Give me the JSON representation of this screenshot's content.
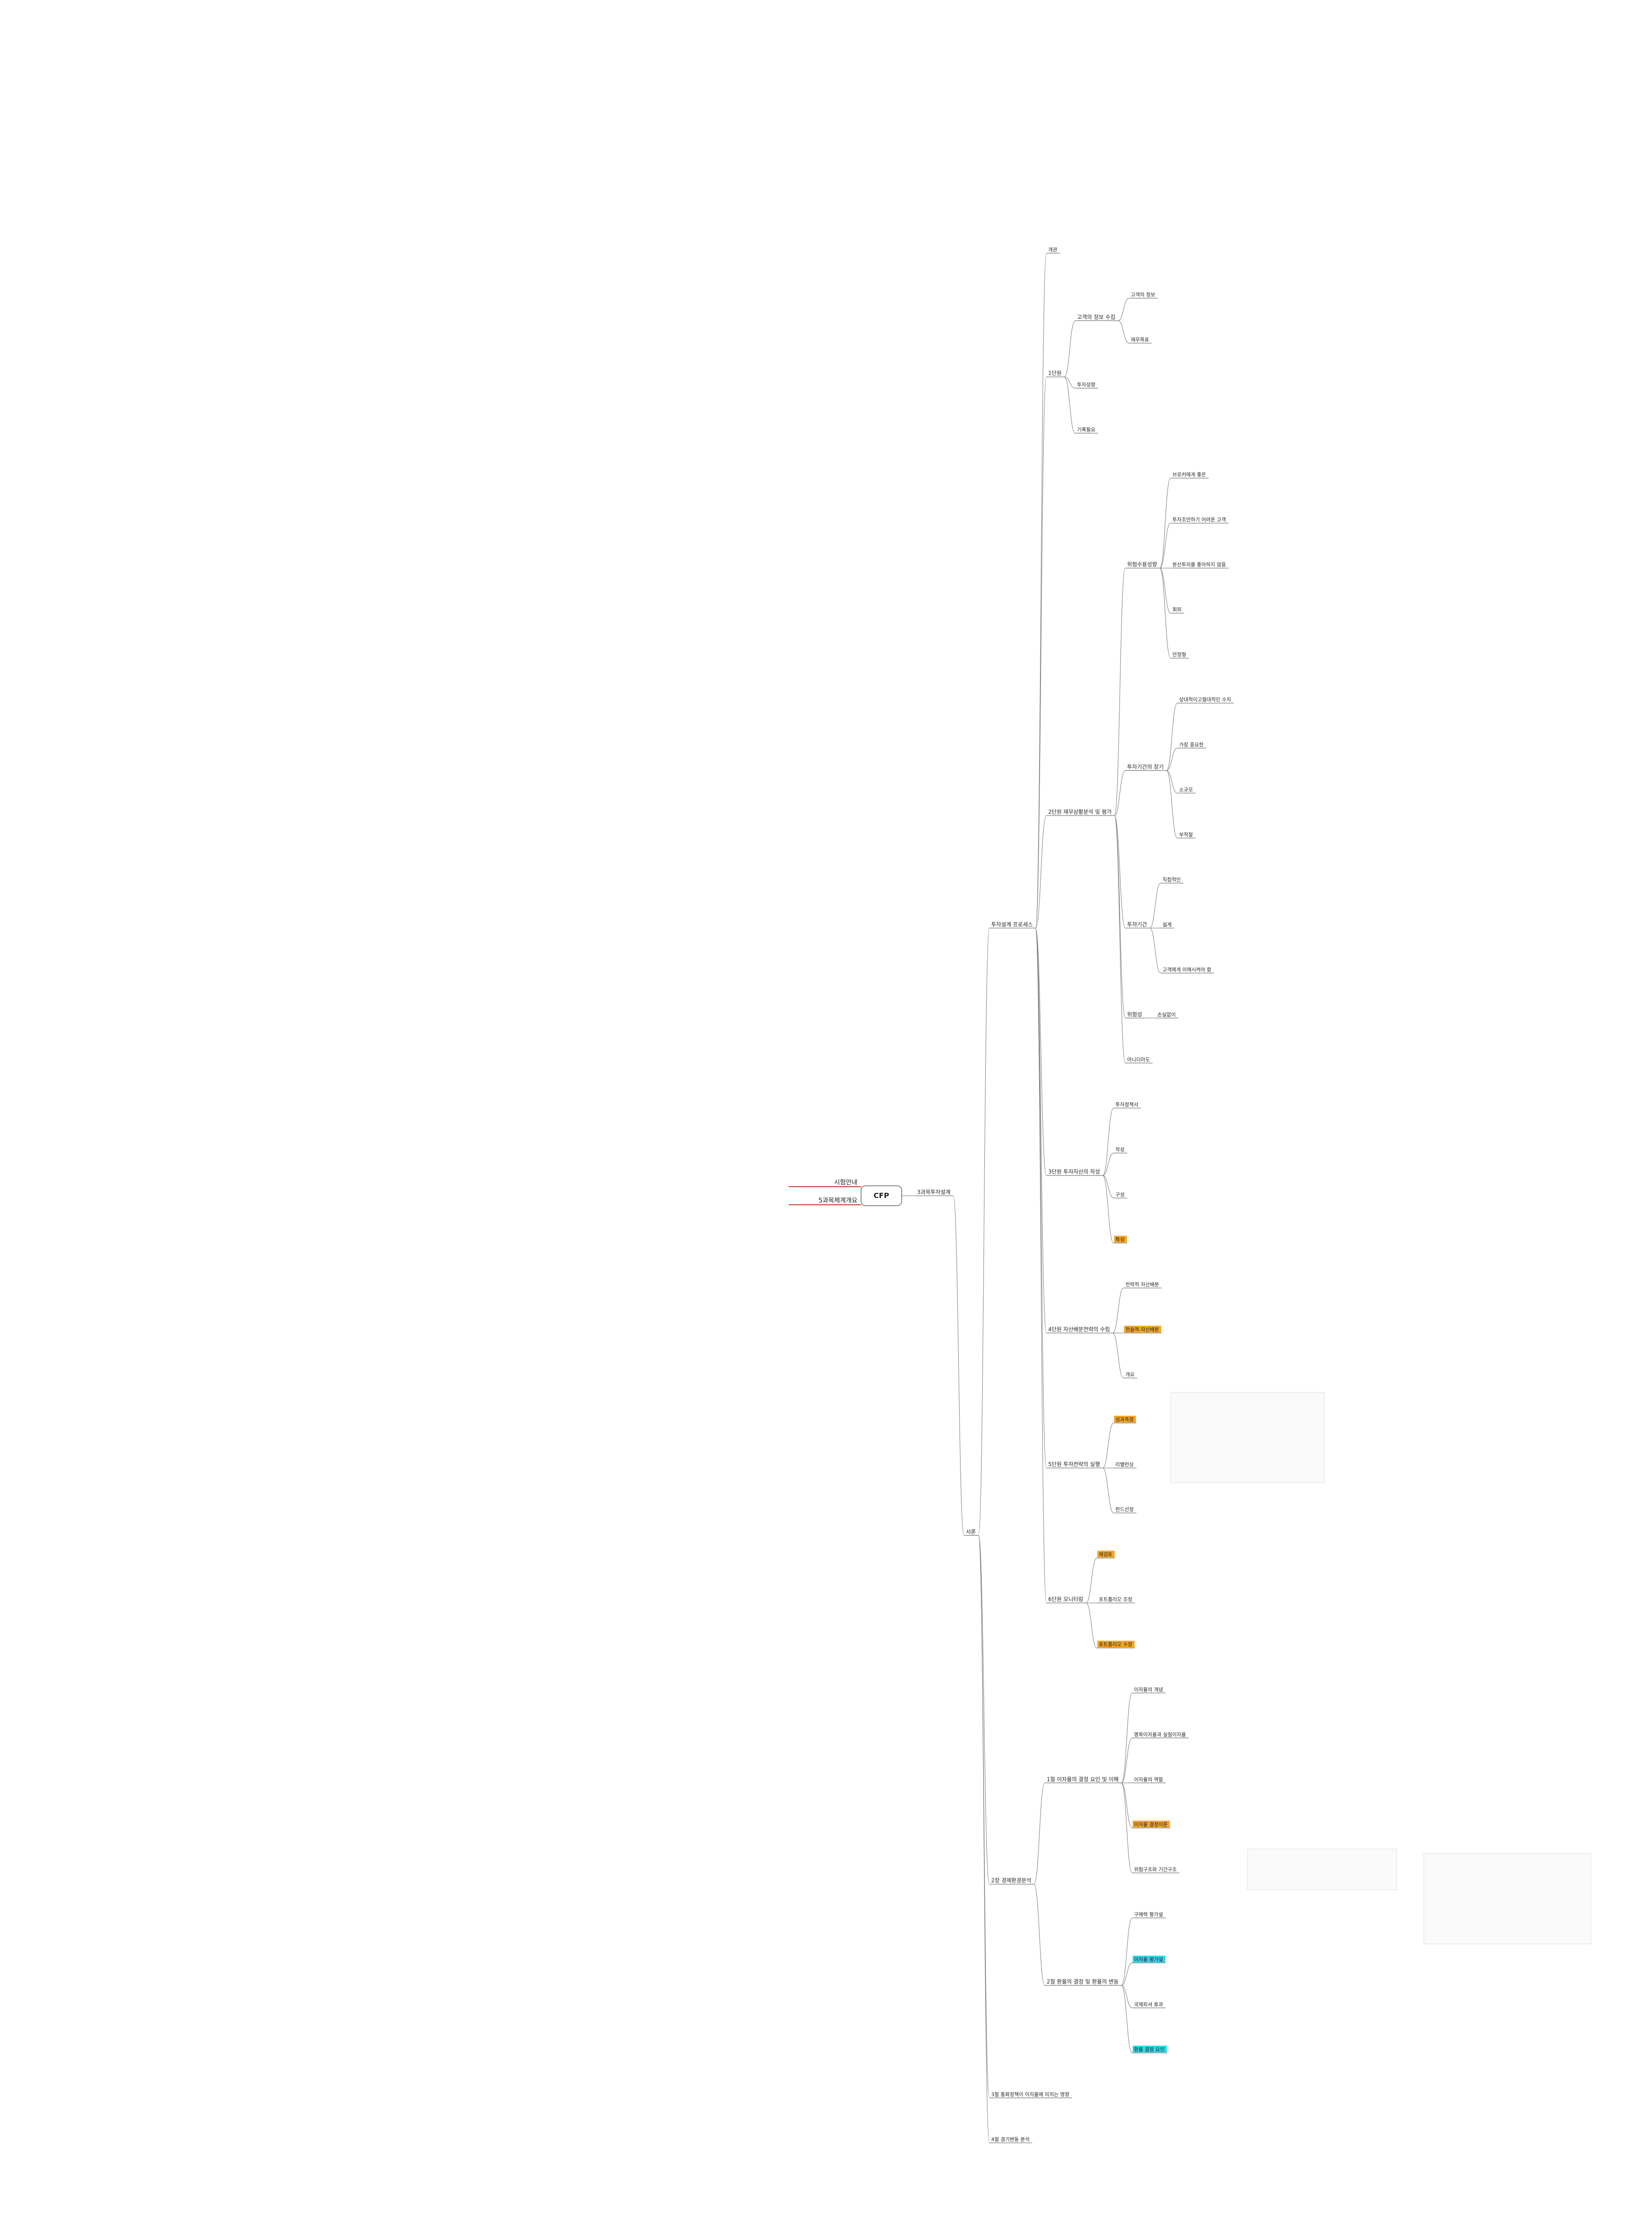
{
  "mindmap": {
    "root": "CFP",
    "left": [
      "시험안내",
      "5과목체계개요"
    ],
    "right": {
      "label": "3과목투자설계",
      "children": [
        {
          "label": "서론",
          "children": [
            {
              "label": "투자설계 프로세스",
              "children": [
                {
                  "label": "개관"
                },
                {
                  "label": "1단원",
                  "children": [
                    {
                      "label": "고객의 정보 수집",
                      "children": [
                        {
                          "label": "고객의 정보"
                        },
                        {
                          "label": "재무목표"
                        }
                      ]
                    },
                    {
                      "label": "투자성향"
                    },
                    {
                      "label": "기록필요"
                    }
                  ]
                },
                {
                  "label": "2단원 재무상황분석 및 평가",
                  "children": [
                    {
                      "label": "위험수용성향",
                      "children": [
                        {
                          "label": "브로커에게 좋은"
                        },
                        {
                          "label": "투자조언하기 어려운 고객"
                        },
                        {
                          "label": "분산투자를 좋아하지 않음"
                        },
                        {
                          "label": "회피"
                        },
                        {
                          "label": "안정형"
                        }
                      ]
                    },
                    {
                      "label": "투자기간의 장기",
                      "children": [
                        {
                          "label": "상대적이고절대적인 수치"
                        },
                        {
                          "label": "가장 중요한"
                        },
                        {
                          "label": "소규모"
                        },
                        {
                          "label": "부적절"
                        }
                      ]
                    },
                    {
                      "label": "투자기간",
                      "children": [
                        {
                          "label": "직접적인"
                        },
                        {
                          "label": "설계"
                        },
                        {
                          "label": "고객에게 이해시켜야 함"
                        }
                      ]
                    },
                    {
                      "label": "위험성",
                      "children": [
                        {
                          "label": "손실없이"
                        }
                      ]
                    },
                    {
                      "label": "아니더라도"
                    }
                  ]
                },
                {
                  "label": "3단원 투자자산의 작성",
                  "children": [
                    {
                      "label": "투자정책서"
                    },
                    {
                      "label": "작성"
                    },
                    {
                      "label": "구성"
                    },
                    {
                      "label": "특성",
                      "highlight": "#f5a623"
                    }
                  ]
                },
                {
                  "label": "4단원 자산배분전략의 수립",
                  "children": [
                    {
                      "label": "전략적 자산배분"
                    },
                    {
                      "label": "전술적 자산배분",
                      "highlight": "#f5a623"
                    },
                    {
                      "label": "개요"
                    }
                  ]
                },
                {
                  "label": "5단원 투자전략의 실행",
                  "children": [
                    {
                      "label": "성과측정",
                      "highlight": "#f5a623"
                    },
                    {
                      "label": "리밸런싱"
                    },
                    {
                      "label": "펀드선정"
                    }
                  ]
                },
                {
                  "label": "6단원 모니터링",
                  "children": [
                    {
                      "label": "재검토",
                      "highlight": "#f5a623"
                    },
                    {
                      "label": "포트폴리오 조정"
                    },
                    {
                      "label": "포트폴리오 수정",
                      "highlight": "#f5a623"
                    }
                  ]
                }
              ]
            },
            {
              "label": "2장 경제환경분석",
              "children": [
                {
                  "label": "1절 이자율의 결정 요인 및 이해",
                  "children": [
                    {
                      "label": "이자율의 개념"
                    },
                    {
                      "label": "명목이자율과 실질이자율"
                    },
                    {
                      "label": "이자율의 역할"
                    },
                    {
                      "label": "이자율 결정이론",
                      "highlight": "#f5a623"
                    },
                    {
                      "label": "위험구조와 기간구조"
                    }
                  ]
                },
                {
                  "label": "2절 환율의 결정 및 환율의 변동",
                  "children": [
                    {
                      "label": "구매력 평가설"
                    },
                    {
                      "label": "이자율 평가설",
                      "highlight": "#31d7e8"
                    },
                    {
                      "label": "국제피셔 효과"
                    },
                    {
                      "label": "환율 결정 요인",
                      "highlight": "#31d7e8"
                    }
                  ]
                }
              ]
            },
            {
              "label": "3절 통화정책이 이자율에 미치는 영향"
            },
            {
              "label": "4절 경기변동 분석"
            }
          ]
        }
      ]
    }
  }
}
